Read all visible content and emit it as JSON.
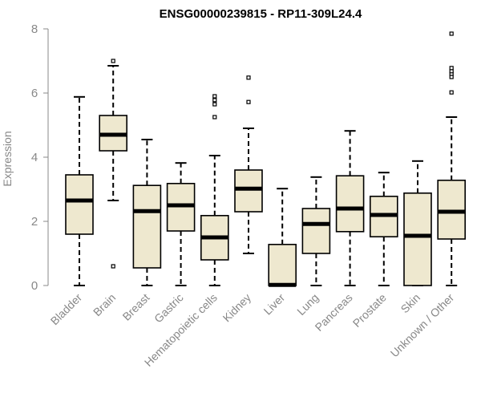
{
  "chart_data": {
    "type": "box",
    "title": "ENSG00000239815 - RP11-309L24.4",
    "xlabel": "",
    "ylabel": "Expression",
    "ylim": [
      0,
      8
    ],
    "yticks": [
      "0",
      "2",
      "4",
      "6",
      "8"
    ],
    "grid": false,
    "box_fill": "#EEE8CF",
    "box_stroke": "#000000",
    "categories": [
      "Bladder",
      "Brain",
      "Breast",
      "Gastric",
      "Hematopoietic cells",
      "Kidney",
      "Liver",
      "Lung",
      "Pancreas",
      "Prostate",
      "Skin",
      "Unknown / Other"
    ],
    "series": [
      {
        "category": "Bladder",
        "whisker_low": 0.0,
        "q1": 1.6,
        "median": 2.65,
        "q3": 3.45,
        "whisker_high": 5.88,
        "outliers": []
      },
      {
        "category": "Brain",
        "whisker_low": 2.65,
        "q1": 4.2,
        "median": 4.7,
        "q3": 5.3,
        "whisker_high": 6.85,
        "outliers": [
          0.6,
          7.0
        ]
      },
      {
        "category": "Breast",
        "whisker_low": 0.0,
        "q1": 0.55,
        "median": 2.32,
        "q3": 3.12,
        "whisker_high": 4.55,
        "outliers": []
      },
      {
        "category": "Gastric",
        "whisker_low": 0.0,
        "q1": 1.7,
        "median": 2.5,
        "q3": 3.18,
        "whisker_high": 3.82,
        "outliers": []
      },
      {
        "category": "Hematopoietic cells",
        "whisker_low": 0.0,
        "q1": 0.8,
        "median": 1.5,
        "q3": 2.18,
        "whisker_high": 4.05,
        "outliers": [
          5.25,
          5.65,
          5.78,
          5.9
        ]
      },
      {
        "category": "Kidney",
        "whisker_low": 1.0,
        "q1": 2.3,
        "median": 3.02,
        "q3": 3.6,
        "whisker_high": 4.9,
        "outliers": [
          5.72,
          6.48
        ]
      },
      {
        "category": "Liver",
        "whisker_low": 0.0,
        "q1": 0.0,
        "median": 0.02,
        "q3": 1.28,
        "whisker_high": 3.02,
        "outliers": []
      },
      {
        "category": "Lung",
        "whisker_low": 0.0,
        "q1": 1.0,
        "median": 1.92,
        "q3": 2.4,
        "whisker_high": 3.38,
        "outliers": []
      },
      {
        "category": "Pancreas",
        "whisker_low": 0.0,
        "q1": 1.68,
        "median": 2.4,
        "q3": 3.42,
        "whisker_high": 4.82,
        "outliers": []
      },
      {
        "category": "Prostate",
        "whisker_low": 0.0,
        "q1": 1.52,
        "median": 2.2,
        "q3": 2.78,
        "whisker_high": 3.52,
        "outliers": []
      },
      {
        "category": "Skin",
        "whisker_low": 0.0,
        "q1": 0.0,
        "median": 1.55,
        "q3": 2.88,
        "whisker_high": 3.88,
        "outliers": []
      },
      {
        "category": "Unknown / Other",
        "whisker_low": 0.0,
        "q1": 1.45,
        "median": 2.3,
        "q3": 3.28,
        "whisker_high": 5.25,
        "outliers": [
          6.02,
          6.5,
          6.6,
          6.68,
          6.78,
          7.85
        ]
      }
    ]
  }
}
